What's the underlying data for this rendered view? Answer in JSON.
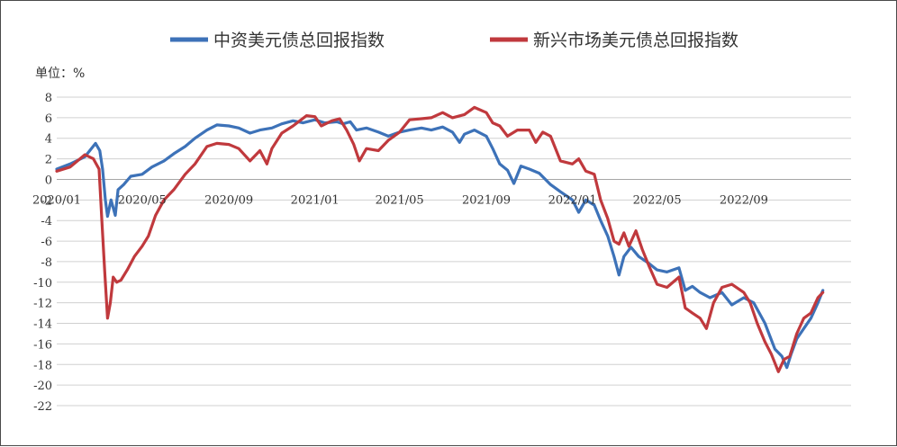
{
  "chart_data": {
    "type": "line",
    "unit_label": "单位：%",
    "ylim": [
      -22,
      8
    ],
    "yticks": [
      8,
      6,
      4,
      2,
      0,
      -2,
      -4,
      -6,
      -8,
      -10,
      -12,
      -14,
      -16,
      -18,
      -20,
      -22
    ],
    "ytick_labels": [
      "8",
      "6",
      "4",
      "2",
      "0",
      "-2",
      "-4",
      "-6",
      "-8",
      "-10",
      "-12",
      "-14",
      "-16",
      "-18",
      "-20",
      "-22"
    ],
    "xlim": [
      "2020-01-01",
      "2023-01-31"
    ],
    "xticks": [
      "2020-01-01",
      "2020-05-01",
      "2020-09-01",
      "2021-01-01",
      "2021-05-01",
      "2021-09-01",
      "2022-01-01",
      "2022-05-01",
      "2022-09-01"
    ],
    "xtick_labels": [
      "2020/01",
      "2020/05",
      "2020/09",
      "2021/01",
      "2021/05",
      "2021/09",
      "2022/01",
      "2022/05",
      "2022/09"
    ],
    "grid": true,
    "legend_position": "top",
    "series": [
      {
        "name": "中资美元债总回报指数",
        "color": "#3d72b8",
        "points": [
          [
            "2020-01-01",
            1.0
          ],
          [
            "2020-01-20",
            1.5
          ],
          [
            "2020-02-10",
            2.2
          ],
          [
            "2020-02-25",
            3.5
          ],
          [
            "2020-03-02",
            2.8
          ],
          [
            "2020-03-06",
            1.0
          ],
          [
            "2020-03-10",
            -2.0
          ],
          [
            "2020-03-13",
            -3.6
          ],
          [
            "2020-03-18",
            -2.0
          ],
          [
            "2020-03-24",
            -3.5
          ],
          [
            "2020-03-28",
            -1.0
          ],
          [
            "2020-04-05",
            -0.5
          ],
          [
            "2020-04-15",
            0.3
          ],
          [
            "2020-05-01",
            0.5
          ],
          [
            "2020-05-15",
            1.2
          ],
          [
            "2020-06-01",
            1.8
          ],
          [
            "2020-06-15",
            2.5
          ],
          [
            "2020-07-01",
            3.2
          ],
          [
            "2020-07-15",
            4.0
          ],
          [
            "2020-08-01",
            4.8
          ],
          [
            "2020-08-15",
            5.3
          ],
          [
            "2020-09-01",
            5.2
          ],
          [
            "2020-09-15",
            5.0
          ],
          [
            "2020-10-01",
            4.5
          ],
          [
            "2020-10-15",
            4.8
          ],
          [
            "2020-11-01",
            5.0
          ],
          [
            "2020-11-15",
            5.4
          ],
          [
            "2020-12-01",
            5.7
          ],
          [
            "2020-12-15",
            5.5
          ],
          [
            "2021-01-01",
            5.8
          ],
          [
            "2021-01-15",
            5.5
          ],
          [
            "2021-02-01",
            5.6
          ],
          [
            "2021-02-10",
            5.4
          ],
          [
            "2021-02-20",
            5.6
          ],
          [
            "2021-03-01",
            4.8
          ],
          [
            "2021-03-15",
            5.0
          ],
          [
            "2021-04-01",
            4.6
          ],
          [
            "2021-04-15",
            4.2
          ],
          [
            "2021-05-01",
            4.6
          ],
          [
            "2021-05-15",
            4.8
          ],
          [
            "2021-06-01",
            5.0
          ],
          [
            "2021-06-15",
            4.8
          ],
          [
            "2021-07-01",
            5.1
          ],
          [
            "2021-07-15",
            4.6
          ],
          [
            "2021-07-25",
            3.6
          ],
          [
            "2021-08-01",
            4.4
          ],
          [
            "2021-08-15",
            4.8
          ],
          [
            "2021-09-01",
            4.2
          ],
          [
            "2021-09-10",
            3.0
          ],
          [
            "2021-09-20",
            1.5
          ],
          [
            "2021-10-01",
            0.9
          ],
          [
            "2021-10-10",
            -0.4
          ],
          [
            "2021-10-20",
            1.3
          ],
          [
            "2021-11-01",
            1.0
          ],
          [
            "2021-11-15",
            0.6
          ],
          [
            "2021-12-01",
            -0.5
          ],
          [
            "2021-12-15",
            -1.2
          ],
          [
            "2022-01-01",
            -2.0
          ],
          [
            "2022-01-10",
            -3.2
          ],
          [
            "2022-01-20",
            -2.0
          ],
          [
            "2022-02-01",
            -2.5
          ],
          [
            "2022-02-10",
            -4.0
          ],
          [
            "2022-02-20",
            -5.5
          ],
          [
            "2022-03-01",
            -7.5
          ],
          [
            "2022-03-08",
            -9.3
          ],
          [
            "2022-03-15",
            -7.5
          ],
          [
            "2022-03-25",
            -6.6
          ],
          [
            "2022-04-05",
            -7.5
          ],
          [
            "2022-04-20",
            -8.2
          ],
          [
            "2022-05-01",
            -8.8
          ],
          [
            "2022-05-15",
            -9.0
          ],
          [
            "2022-06-01",
            -8.6
          ],
          [
            "2022-06-10",
            -10.8
          ],
          [
            "2022-06-20",
            -10.4
          ],
          [
            "2022-07-01",
            -11.0
          ],
          [
            "2022-07-15",
            -11.5
          ],
          [
            "2022-08-01",
            -11.0
          ],
          [
            "2022-08-15",
            -12.2
          ],
          [
            "2022-09-01",
            -11.5
          ],
          [
            "2022-09-15",
            -12.0
          ],
          [
            "2022-10-01",
            -14.0
          ],
          [
            "2022-10-15",
            -16.5
          ],
          [
            "2022-10-25",
            -17.2
          ],
          [
            "2022-11-01",
            -18.3
          ],
          [
            "2022-11-07",
            -17.0
          ],
          [
            "2022-11-15",
            -15.5
          ],
          [
            "2022-11-25",
            -14.5
          ],
          [
            "2022-12-05",
            -13.5
          ],
          [
            "2022-12-15",
            -12.0
          ],
          [
            "2022-12-22",
            -10.8
          ]
        ]
      },
      {
        "name": "新兴市场美元债总回报指数",
        "color": "#c0393d",
        "points": [
          [
            "2020-01-01",
            0.8
          ],
          [
            "2020-01-20",
            1.2
          ],
          [
            "2020-02-10",
            2.4
          ],
          [
            "2020-02-22",
            2.0
          ],
          [
            "2020-03-01",
            1.0
          ],
          [
            "2020-03-05",
            -4.0
          ],
          [
            "2020-03-09",
            -9.0
          ],
          [
            "2020-03-13",
            -13.5
          ],
          [
            "2020-03-17",
            -12.0
          ],
          [
            "2020-03-21",
            -9.5
          ],
          [
            "2020-03-26",
            -10.0
          ],
          [
            "2020-04-01",
            -9.8
          ],
          [
            "2020-04-10",
            -8.8
          ],
          [
            "2020-04-20",
            -7.5
          ],
          [
            "2020-05-01",
            -6.5
          ],
          [
            "2020-05-10",
            -5.5
          ],
          [
            "2020-05-20",
            -3.5
          ],
          [
            "2020-06-01",
            -2.0
          ],
          [
            "2020-06-15",
            -1.0
          ],
          [
            "2020-07-01",
            0.5
          ],
          [
            "2020-07-15",
            1.5
          ],
          [
            "2020-08-01",
            3.2
          ],
          [
            "2020-08-15",
            3.5
          ],
          [
            "2020-09-01",
            3.4
          ],
          [
            "2020-09-15",
            3.0
          ],
          [
            "2020-10-01",
            1.8
          ],
          [
            "2020-10-15",
            2.8
          ],
          [
            "2020-10-25",
            1.5
          ],
          [
            "2020-11-01",
            3.0
          ],
          [
            "2020-11-15",
            4.5
          ],
          [
            "2020-12-01",
            5.2
          ],
          [
            "2020-12-20",
            6.2
          ],
          [
            "2021-01-01",
            6.1
          ],
          [
            "2021-01-10",
            5.2
          ],
          [
            "2021-01-25",
            5.7
          ],
          [
            "2021-02-05",
            5.9
          ],
          [
            "2021-02-15",
            4.8
          ],
          [
            "2021-02-25",
            3.4
          ],
          [
            "2021-03-05",
            1.8
          ],
          [
            "2021-03-15",
            3.0
          ],
          [
            "2021-04-01",
            2.8
          ],
          [
            "2021-04-15",
            3.8
          ],
          [
            "2021-05-01",
            4.6
          ],
          [
            "2021-05-15",
            5.8
          ],
          [
            "2021-06-01",
            5.9
          ],
          [
            "2021-06-15",
            6.0
          ],
          [
            "2021-07-01",
            6.5
          ],
          [
            "2021-07-15",
            6.0
          ],
          [
            "2021-08-01",
            6.3
          ],
          [
            "2021-08-15",
            7.0
          ],
          [
            "2021-09-01",
            6.5
          ],
          [
            "2021-09-10",
            5.5
          ],
          [
            "2021-09-20",
            5.2
          ],
          [
            "2021-10-01",
            4.2
          ],
          [
            "2021-10-15",
            4.8
          ],
          [
            "2021-11-01",
            4.8
          ],
          [
            "2021-11-10",
            3.6
          ],
          [
            "2021-11-20",
            4.6
          ],
          [
            "2021-12-01",
            4.2
          ],
          [
            "2021-12-15",
            1.8
          ],
          [
            "2022-01-01",
            1.5
          ],
          [
            "2022-01-10",
            2.0
          ],
          [
            "2022-01-20",
            0.8
          ],
          [
            "2022-02-01",
            0.5
          ],
          [
            "2022-02-10",
            -2.0
          ],
          [
            "2022-02-20",
            -3.8
          ],
          [
            "2022-03-01",
            -6.0
          ],
          [
            "2022-03-08",
            -6.3
          ],
          [
            "2022-03-15",
            -5.2
          ],
          [
            "2022-03-22",
            -6.5
          ],
          [
            "2022-04-01",
            -5.0
          ],
          [
            "2022-04-10",
            -6.8
          ],
          [
            "2022-04-20",
            -8.5
          ],
          [
            "2022-05-01",
            -10.2
          ],
          [
            "2022-05-15",
            -10.5
          ],
          [
            "2022-06-01",
            -9.5
          ],
          [
            "2022-06-10",
            -12.5
          ],
          [
            "2022-06-20",
            -13.0
          ],
          [
            "2022-07-01",
            -13.5
          ],
          [
            "2022-07-10",
            -14.5
          ],
          [
            "2022-07-20",
            -12.0
          ],
          [
            "2022-08-01",
            -10.5
          ],
          [
            "2022-08-15",
            -10.2
          ],
          [
            "2022-09-01",
            -11.0
          ],
          [
            "2022-09-10",
            -12.0
          ],
          [
            "2022-09-20",
            -14.0
          ],
          [
            "2022-10-01",
            -15.8
          ],
          [
            "2022-10-10",
            -17.0
          ],
          [
            "2022-10-20",
            -18.7
          ],
          [
            "2022-10-28",
            -17.5
          ],
          [
            "2022-11-05",
            -17.2
          ],
          [
            "2022-11-15",
            -15.0
          ],
          [
            "2022-11-25",
            -13.5
          ],
          [
            "2022-12-05",
            -13.0
          ],
          [
            "2022-12-15",
            -11.5
          ],
          [
            "2022-12-22",
            -11.0
          ]
        ]
      }
    ]
  }
}
